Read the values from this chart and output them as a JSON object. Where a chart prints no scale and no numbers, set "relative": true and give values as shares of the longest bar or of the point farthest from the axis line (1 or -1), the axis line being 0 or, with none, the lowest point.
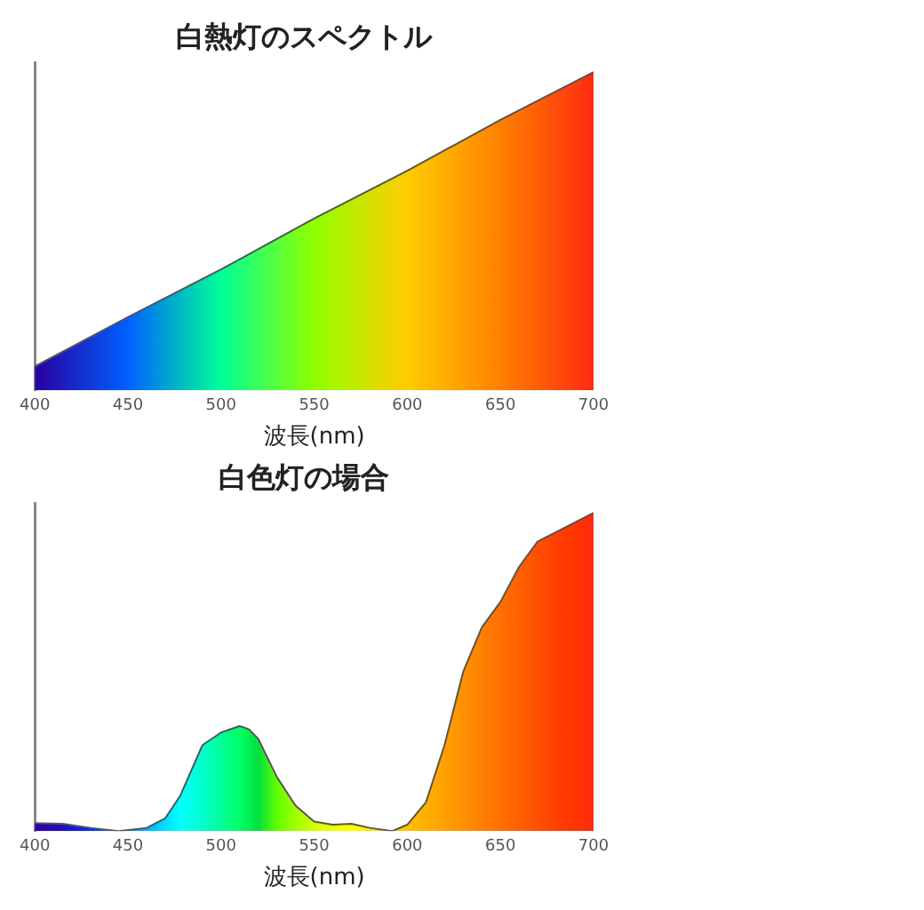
{
  "chart_data": [
    {
      "type": "area",
      "title": "白熱灯のスペクトル",
      "xlabel": "波長(nm)",
      "relative": true,
      "xlim": [
        400,
        700
      ],
      "xticks": [
        400,
        450,
        500,
        550,
        600,
        650,
        700
      ],
      "series": [
        {
          "color": "#555555",
          "x": [
            400,
            450,
            500,
            550,
            600,
            650,
            700
          ],
          "values": [
            0.075,
            0.23,
            0.38,
            0.54,
            0.69,
            0.85,
            1
          ],
          "colors": [
            "#2a00a0",
            "#0060ff",
            "#00ff99",
            "#90ff00",
            "#ffcc00",
            "#ff8000",
            "#ff2a10"
          ]
        }
      ]
    },
    {
      "type": "area",
      "title": "白色灯の場合",
      "xlabel": "波長(nm)",
      "relative": true,
      "xlim": [
        400,
        700
      ],
      "xticks": [
        400,
        450,
        500,
        550,
        600,
        650,
        700
      ],
      "series": [
        {
          "color": "#555555",
          "x": [
            400,
            415,
            430,
            445,
            460,
            470,
            478,
            490,
            500,
            510,
            515,
            520,
            530,
            540,
            550,
            560,
            570,
            580,
            592,
            600,
            610,
            620,
            630,
            640,
            650,
            660,
            670,
            680,
            690,
            700
          ],
          "values": [
            0.025,
            0.023,
            0.01,
            0,
            0.01,
            0.04,
            0.11,
            0.27,
            0.31,
            0.33,
            0.32,
            0.29,
            0.17,
            0.08,
            0.03,
            0.02,
            0.023,
            0.01,
            0,
            0.02,
            0.09,
            0.27,
            0.5,
            0.64,
            0.72,
            0.83,
            0.91,
            0.94,
            0.97,
            1
          ],
          "colors": [
            "#3000a8",
            "#2010c0",
            "#0030ff",
            "#0070ff",
            "#00b0ff",
            "#00e0ff",
            "#00ffff",
            "#00ffcc",
            "#00ff99",
            "#00ff66",
            "#00f050",
            "#00e040",
            "#60ff00",
            "#a0ff00",
            "#d0ff00",
            "#f0ff00",
            "#ffff00",
            "#ffe800",
            "#ffd000",
            "#ffc000",
            "#ffb000",
            "#ffa000",
            "#ff9000",
            "#ff8000",
            "#ff7000",
            "#ff6000",
            "#ff5000",
            "#ff4000",
            "#ff3400",
            "#ff2a10"
          ]
        }
      ]
    }
  ]
}
